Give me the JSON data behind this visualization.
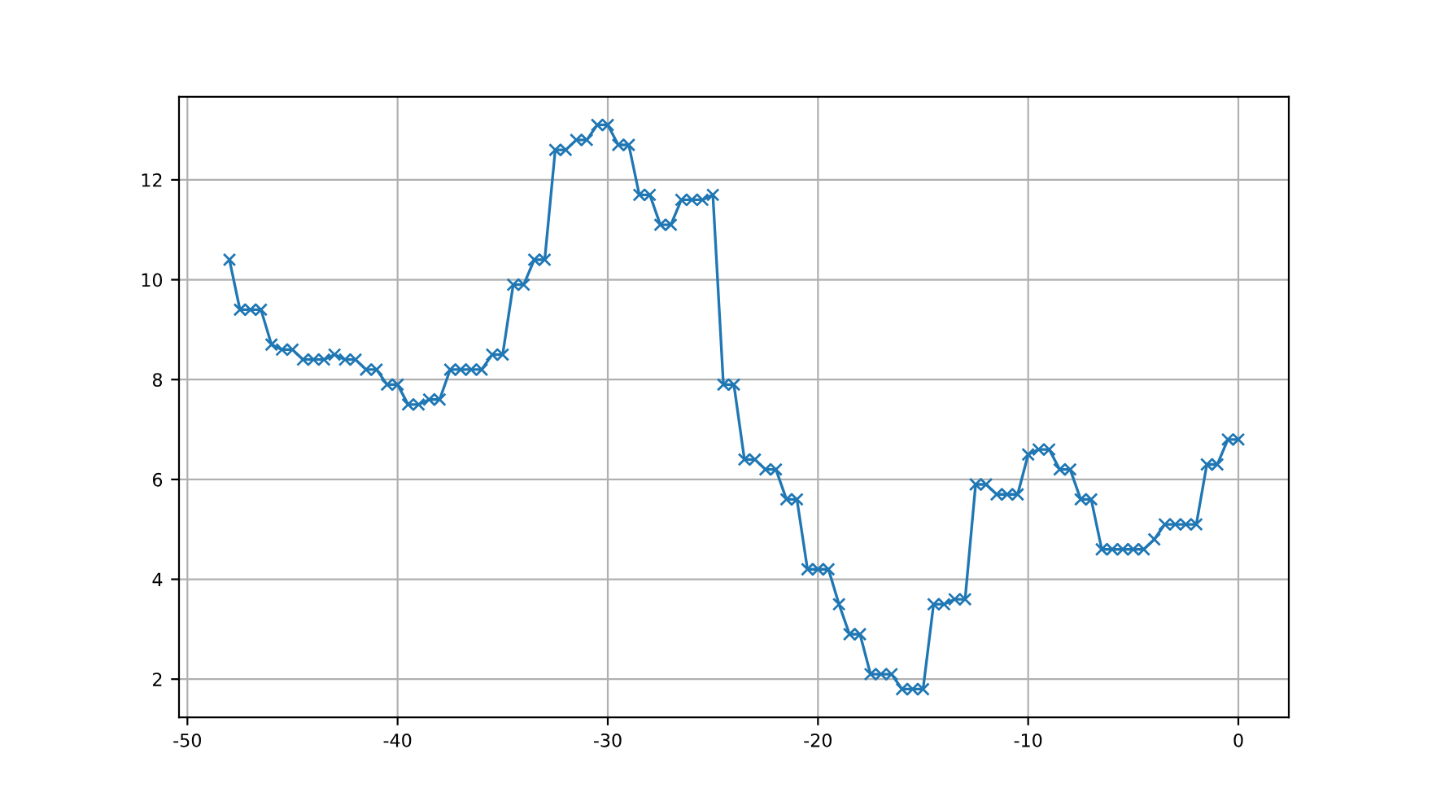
{
  "chart_data": {
    "type": "line",
    "marker": "cross",
    "grid": true,
    "x": [
      -48,
      -47.5,
      -47,
      -46.5,
      -46,
      -45.5,
      -45,
      -44.5,
      -44,
      -43.5,
      -43,
      -42.5,
      -42,
      -41.5,
      -41,
      -40.5,
      -40,
      -39.5,
      -39,
      -38.5,
      -38,
      -37.5,
      -37,
      -36.5,
      -36,
      -35.5,
      -35,
      -34.5,
      -34,
      -33.5,
      -33,
      -32.5,
      -32,
      -31.5,
      -31,
      -30.5,
      -30,
      -29.5,
      -29,
      -28.5,
      -28,
      -27.5,
      -27,
      -26.5,
      -26,
      -25.5,
      -25,
      -24.5,
      -24,
      -23.5,
      -23,
      -22.5,
      -22,
      -21.5,
      -21,
      -20.5,
      -20,
      -19.5,
      -19,
      -18.5,
      -18,
      -17.5,
      -17,
      -16.5,
      -16,
      -15.5,
      -15,
      -14.5,
      -14,
      -13.5,
      -13,
      -12.5,
      -12,
      -11.5,
      -11,
      -10.5,
      -10,
      -9.5,
      -9,
      -8.5,
      -8,
      -7.5,
      -7,
      -6.5,
      -6,
      -5.5,
      -5,
      -4.5,
      -4,
      -3.5,
      -3,
      -2.5,
      -2,
      -1.5,
      -1,
      -0.5,
      0
    ],
    "series": [
      {
        "color": "#1f77b4",
        "values": [
          10.4,
          9.4,
          9.4,
          9.4,
          8.7,
          8.6,
          8.6,
          8.4,
          8.4,
          8.4,
          8.5,
          8.4,
          8.4,
          8.2,
          8.2,
          7.9,
          7.9,
          7.5,
          7.5,
          7.6,
          7.6,
          8.2,
          8.2,
          8.2,
          8.2,
          8.5,
          8.5,
          9.9,
          9.9,
          10.4,
          10.4,
          12.6,
          12.6,
          12.8,
          12.8,
          13.1,
          13.1,
          12.7,
          12.7,
          11.7,
          11.7,
          11.1,
          11.1,
          11.6,
          11.6,
          11.6,
          11.7,
          7.9,
          7.9,
          6.4,
          6.4,
          6.2,
          6.2,
          5.6,
          5.6,
          4.2,
          4.2,
          4.2,
          3.5,
          2.9,
          2.9,
          2.1,
          2.1,
          2.1,
          1.8,
          1.8,
          1.8,
          3.5,
          3.5,
          3.6,
          3.6,
          5.9,
          5.9,
          5.7,
          5.7,
          5.7,
          6.5,
          6.6,
          6.6,
          6.2,
          6.2,
          5.6,
          5.6,
          4.6,
          4.6,
          4.6,
          4.6,
          4.6,
          4.8,
          5.1,
          5.1,
          5.1,
          5.1,
          6.3,
          6.3,
          6.8,
          6.8
        ]
      }
    ],
    "xlim": [
      -50.4,
      2.4
    ],
    "xticks": [
      -50,
      -40,
      -30,
      -20,
      -10,
      0
    ],
    "ylim": [
      1.235,
      13.665
    ],
    "yticks": [
      2,
      4,
      6,
      8,
      10,
      12
    ]
  }
}
